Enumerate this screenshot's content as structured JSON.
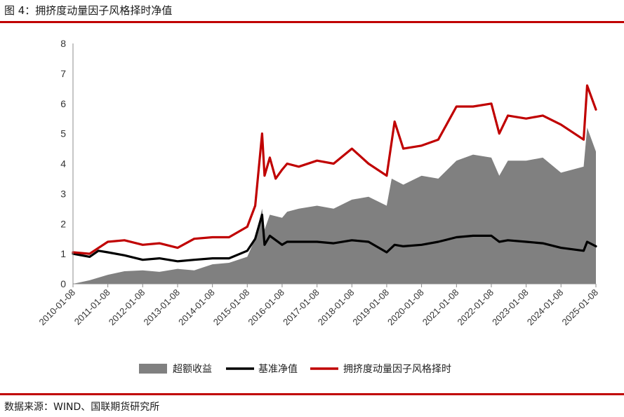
{
  "figure": {
    "title": "图 4：拥挤度动量因子风格择时净值",
    "source": "数据来源：WIND、国联期货研究所"
  },
  "colors": {
    "rule": "#c00000",
    "excess": "#808080",
    "benchmark": "#000000",
    "strategy": "#c00000"
  },
  "chart_data": {
    "type": "line",
    "title": "",
    "xlabel": "",
    "ylabel": "",
    "ylim": [
      0,
      8
    ],
    "yticks": [
      "0",
      "1",
      "2",
      "3",
      "4",
      "5",
      "6",
      "7",
      "8"
    ],
    "xlim": [
      "2010-01-08",
      "2025-01-08"
    ],
    "xticks": [
      "2010-01-08",
      "2011-01-08",
      "2012-01-08",
      "2013-01-08",
      "2014-01-08",
      "2015-01-08",
      "2016-01-08",
      "2017-01-08",
      "2018-01-08",
      "2019-01-08",
      "2020-01-08",
      "2021-01-08",
      "2022-01-08",
      "2023-01-08",
      "2024-01-08",
      "2025-01-08"
    ],
    "grid": false,
    "legend_position": "bottom",
    "series": [
      {
        "name": "超额收益",
        "style": "area",
        "color": "#808080",
        "x": [
          "2010-01-08",
          "2010-07-01",
          "2011-01-08",
          "2011-07-01",
          "2012-01-08",
          "2012-07-01",
          "2013-01-08",
          "2013-07-01",
          "2014-01-08",
          "2014-07-01",
          "2015-01-08",
          "2015-04-01",
          "2015-06-12",
          "2015-07-08",
          "2015-09-01",
          "2016-01-08",
          "2016-03-01",
          "2016-07-01",
          "2017-01-08",
          "2017-07-01",
          "2018-01-08",
          "2018-07-01",
          "2019-01-08",
          "2019-03-01",
          "2019-07-01",
          "2020-01-08",
          "2020-07-01",
          "2021-01-08",
          "2021-07-01",
          "2022-01-08",
          "2022-04-01",
          "2022-07-01",
          "2023-01-08",
          "2023-07-01",
          "2024-01-08",
          "2024-09-01",
          "2024-10-08",
          "2025-01-08"
        ],
        "values": [
          0.0,
          0.12,
          0.3,
          0.42,
          0.45,
          0.4,
          0.5,
          0.45,
          0.65,
          0.7,
          0.9,
          1.5,
          2.5,
          1.8,
          2.3,
          2.2,
          2.4,
          2.5,
          2.6,
          2.5,
          2.8,
          2.9,
          2.6,
          3.5,
          3.3,
          3.6,
          3.5,
          4.1,
          4.3,
          4.2,
          3.6,
          4.1,
          4.1,
          4.2,
          3.7,
          3.9,
          5.2,
          4.4
        ]
      },
      {
        "name": "基准净值",
        "style": "line",
        "color": "#000000",
        "x": [
          "2010-01-08",
          "2010-07-01",
          "2010-10-01",
          "2011-01-08",
          "2011-07-01",
          "2012-01-08",
          "2012-07-01",
          "2013-01-08",
          "2013-07-01",
          "2014-01-08",
          "2014-07-01",
          "2015-01-08",
          "2015-04-01",
          "2015-06-12",
          "2015-07-08",
          "2015-09-01",
          "2016-01-08",
          "2016-03-01",
          "2016-07-01",
          "2017-01-08",
          "2017-07-01",
          "2018-01-08",
          "2018-07-01",
          "2019-01-08",
          "2019-04-01",
          "2019-07-01",
          "2020-01-08",
          "2020-07-01",
          "2021-01-08",
          "2021-07-01",
          "2022-01-08",
          "2022-04-01",
          "2022-07-01",
          "2023-01-08",
          "2023-07-01",
          "2024-01-08",
          "2024-09-01",
          "2024-10-08",
          "2025-01-08"
        ],
        "values": [
          1.0,
          0.9,
          1.1,
          1.05,
          0.95,
          0.8,
          0.85,
          0.75,
          0.8,
          0.85,
          0.85,
          1.1,
          1.5,
          2.3,
          1.3,
          1.6,
          1.3,
          1.4,
          1.4,
          1.4,
          1.35,
          1.45,
          1.4,
          1.05,
          1.3,
          1.25,
          1.3,
          1.4,
          1.55,
          1.6,
          1.6,
          1.4,
          1.45,
          1.4,
          1.35,
          1.2,
          1.1,
          1.4,
          1.25
        ]
      },
      {
        "name": "拥挤度动量因子风格择时",
        "style": "line",
        "color": "#c00000",
        "x": [
          "2010-01-08",
          "2010-07-01",
          "2011-01-08",
          "2011-07-01",
          "2012-01-08",
          "2012-07-01",
          "2013-01-08",
          "2013-07-01",
          "2014-01-08",
          "2014-07-01",
          "2015-01-08",
          "2015-04-01",
          "2015-06-12",
          "2015-07-08",
          "2015-09-01",
          "2015-11-01",
          "2016-01-08",
          "2016-03-01",
          "2016-07-01",
          "2017-01-08",
          "2017-07-01",
          "2018-01-08",
          "2018-07-01",
          "2019-01-08",
          "2019-04-01",
          "2019-07-01",
          "2020-01-08",
          "2020-07-01",
          "2021-01-08",
          "2021-07-01",
          "2022-01-08",
          "2022-04-01",
          "2022-07-01",
          "2023-01-08",
          "2023-07-01",
          "2024-01-08",
          "2024-09-01",
          "2024-10-08",
          "2025-01-08"
        ],
        "values": [
          1.05,
          1.0,
          1.4,
          1.45,
          1.3,
          1.35,
          1.2,
          1.5,
          1.55,
          1.55,
          1.9,
          2.6,
          5.0,
          3.6,
          4.2,
          3.5,
          3.8,
          4.0,
          3.9,
          4.1,
          4.0,
          4.5,
          4.0,
          3.6,
          5.4,
          4.5,
          4.6,
          4.8,
          5.9,
          5.9,
          6.0,
          5.0,
          5.6,
          5.5,
          5.6,
          5.3,
          4.8,
          6.6,
          5.8
        ]
      }
    ]
  }
}
